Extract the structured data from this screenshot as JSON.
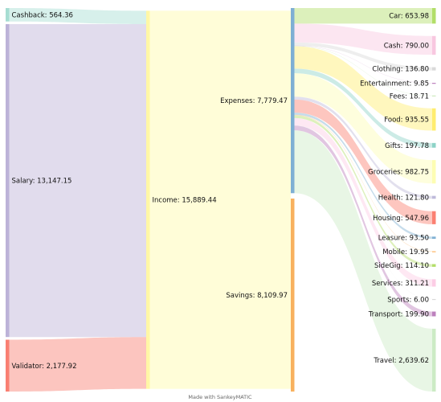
{
  "diagram": {
    "type": "sankey",
    "credit": "Made with SankeyMATIC",
    "nodes": [
      {
        "id": "cashback",
        "label": "Cashback: 564.36",
        "color": "#a6ddd2"
      },
      {
        "id": "salary",
        "label": "Salary: 13,147.15",
        "color": "#bcb2d8"
      },
      {
        "id": "validator",
        "label": "Validator: 2,177.92",
        "color": "#f97f72"
      },
      {
        "id": "income",
        "label": "Income: 15,889.44",
        "color": "#fff7a6"
      },
      {
        "id": "expenses",
        "label": "Expenses: 7,779.47",
        "color": "#7eafd4"
      },
      {
        "id": "savings",
        "label": "Savings: 8,109.97",
        "color": "#f8b15e"
      },
      {
        "id": "car",
        "label": "Car: 653.98",
        "color": "#b2de68"
      },
      {
        "id": "cash",
        "label": "Cash: 790.00",
        "color": "#f8c8e0"
      },
      {
        "id": "clothing",
        "label": "Clothing: 136.80",
        "color": "#d9d9d9"
      },
      {
        "id": "entertainment",
        "label": "Entertainment: 9.85",
        "color": "#bc80bd"
      },
      {
        "id": "fees",
        "label": "Fees: 18.71",
        "color": "#cceabe"
      },
      {
        "id": "food",
        "label": "Food: 935.55",
        "color": "#ffed6f"
      },
      {
        "id": "gifts",
        "label": "Gifts: 197.78",
        "color": "#8dd3c7"
      },
      {
        "id": "groceries",
        "label": "Groceries: 982.75",
        "color": "#fdfdb3"
      },
      {
        "id": "health",
        "label": "Health: 121.80",
        "color": "#bebada"
      },
      {
        "id": "housing",
        "label": "Housing: 547.96",
        "color": "#fb8072"
      },
      {
        "id": "leasure",
        "label": "Leasure: 93.50",
        "color": "#80b1d3"
      },
      {
        "id": "mobile",
        "label": "Mobile: 19.95",
        "color": "#fdb462"
      },
      {
        "id": "sidegig",
        "label": "SideGig: 114.10",
        "color": "#b3de69"
      },
      {
        "id": "services",
        "label": "Services: 311.21",
        "color": "#fccde5"
      },
      {
        "id": "sports",
        "label": "Sports: 6.00",
        "color": "#d9d9d9"
      },
      {
        "id": "transport",
        "label": "Transport: 199.90",
        "color": "#bc80bd"
      },
      {
        "id": "travel",
        "label": "Travel: 2,639.62",
        "color": "#ccebc5"
      }
    ],
    "flows": [
      {
        "from": "cashback",
        "to": "income",
        "value": 564.36
      },
      {
        "from": "salary",
        "to": "income",
        "value": 13147.15
      },
      {
        "from": "validator",
        "to": "income",
        "value": 2177.92
      },
      {
        "from": "income",
        "to": "expenses",
        "value": 7779.47
      },
      {
        "from": "income",
        "to": "savings",
        "value": 8109.97
      },
      {
        "from": "expenses",
        "to": "car",
        "value": 653.98
      },
      {
        "from": "expenses",
        "to": "cash",
        "value": 790.0
      },
      {
        "from": "expenses",
        "to": "clothing",
        "value": 136.8
      },
      {
        "from": "expenses",
        "to": "entertainment",
        "value": 9.85
      },
      {
        "from": "expenses",
        "to": "fees",
        "value": 18.71
      },
      {
        "from": "expenses",
        "to": "food",
        "value": 935.55
      },
      {
        "from": "expenses",
        "to": "gifts",
        "value": 197.78
      },
      {
        "from": "expenses",
        "to": "groceries",
        "value": 982.75
      },
      {
        "from": "expenses",
        "to": "health",
        "value": 121.8
      },
      {
        "from": "expenses",
        "to": "housing",
        "value": 547.96
      },
      {
        "from": "expenses",
        "to": "leasure",
        "value": 93.5
      },
      {
        "from": "expenses",
        "to": "mobile",
        "value": 19.95
      },
      {
        "from": "expenses",
        "to": "sidegig",
        "value": 114.1
      },
      {
        "from": "expenses",
        "to": "services",
        "value": 311.21
      },
      {
        "from": "expenses",
        "to": "sports",
        "value": 6.0
      },
      {
        "from": "expenses",
        "to": "transport",
        "value": 199.9
      },
      {
        "from": "expenses",
        "to": "travel",
        "value": 2639.62
      }
    ]
  }
}
